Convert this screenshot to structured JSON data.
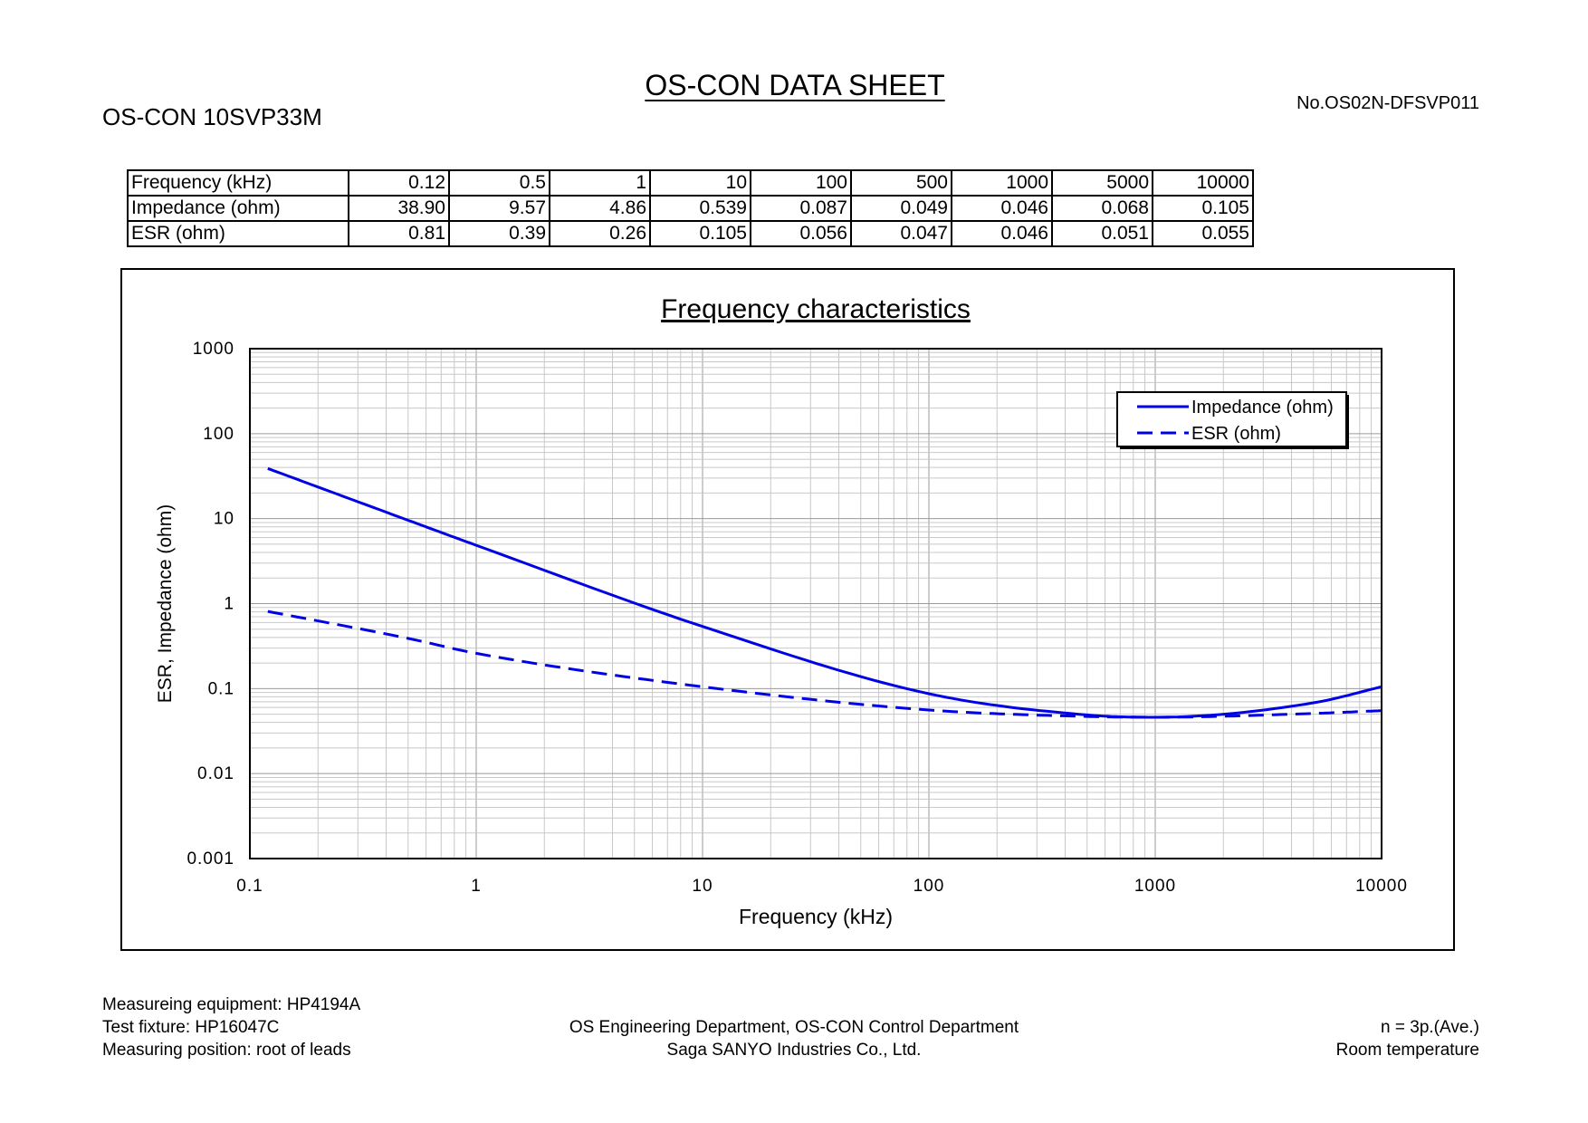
{
  "header": {
    "title": "OS-CON DATA SHEET",
    "model": "OS-CON 10SVP33M",
    "doc_no": "No.OS02N-DFSVP011"
  },
  "table": {
    "rows": [
      {
        "label": "Frequency (kHz)",
        "values": [
          "0.12",
          "0.5",
          "1",
          "10",
          "100",
          "500",
          "1000",
          "5000",
          "10000"
        ]
      },
      {
        "label": "Impedance (ohm)",
        "values": [
          "38.90",
          "9.57",
          "4.86",
          "0.539",
          "0.087",
          "0.049",
          "0.046",
          "0.068",
          "0.105"
        ]
      },
      {
        "label": "ESR (ohm)",
        "values": [
          "0.81",
          "0.39",
          "0.26",
          "0.105",
          "0.056",
          "0.047",
          "0.046",
          "0.051",
          "0.055"
        ]
      }
    ]
  },
  "chart_data": {
    "type": "line",
    "title": "Frequency characteristics",
    "xlabel": "Frequency (kHz)",
    "ylabel": "ESR, Impedance (ohm)",
    "xscale": "log",
    "yscale": "log",
    "xlim": [
      0.1,
      10000
    ],
    "ylim": [
      0.001,
      1000
    ],
    "xticks": [
      "0.1",
      "1",
      "10",
      "100",
      "1000",
      "10000"
    ],
    "yticks": [
      "1000",
      "100",
      "10",
      "1",
      "0.1",
      "0.01",
      "0.001"
    ],
    "grid": true,
    "legend": "top-right",
    "line_color": "#0000e6",
    "series": [
      {
        "name": "Impedance (ohm)",
        "style": "solid",
        "x": [
          0.12,
          0.5,
          1,
          10,
          100,
          500,
          1000,
          5000,
          10000
        ],
        "y": [
          38.9,
          9.57,
          4.86,
          0.539,
          0.087,
          0.049,
          0.046,
          0.068,
          0.105
        ]
      },
      {
        "name": "ESR (ohm)",
        "style": "dashed",
        "x": [
          0.12,
          0.5,
          1,
          10,
          100,
          500,
          1000,
          5000,
          10000
        ],
        "y": [
          0.81,
          0.39,
          0.26,
          0.105,
          0.056,
          0.047,
          0.046,
          0.051,
          0.055
        ]
      }
    ]
  },
  "footer": {
    "left": [
      "Measureing equipment: HP4194A",
      "Test fixture: HP16047C",
      "Measuring position: root of leads"
    ],
    "center": [
      "OS Engineering Department, OS-CON Control Department",
      "Saga SANYO Industries Co., Ltd."
    ],
    "right": [
      "n = 3p.(Ave.)",
      "Room temperature"
    ]
  }
}
